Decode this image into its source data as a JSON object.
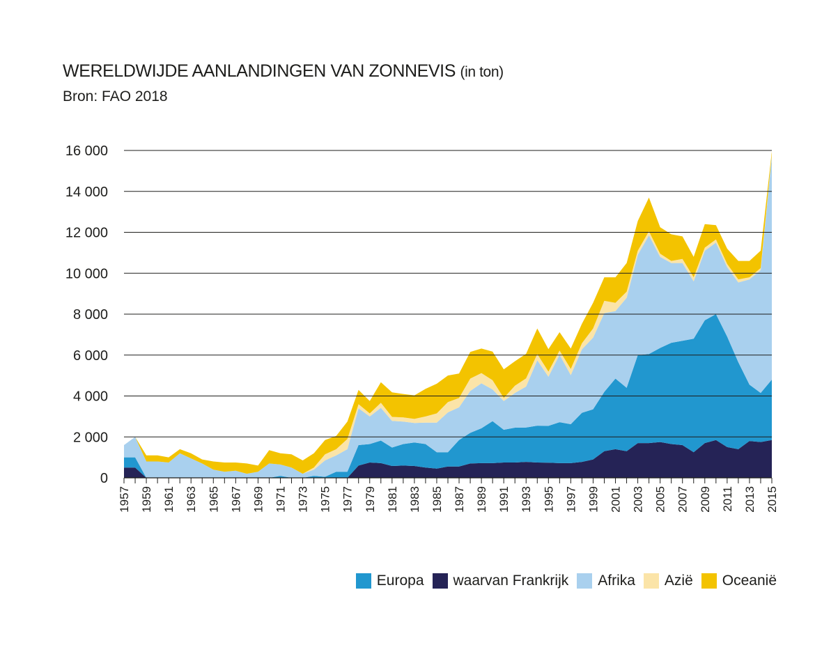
{
  "header": {
    "title_main": "WERELDWIJDE AANLANDINGEN VAN ZONNEVIS",
    "title_unit": "(in ton)",
    "source": "Bron: FAO 2018"
  },
  "colors": {
    "europa": "#2197cf",
    "frankrijk": "#252356",
    "afrika": "#a9d0ee",
    "azie": "#fbe4a8",
    "oceanie": "#f3c300",
    "gridline": "#1d1d1b"
  },
  "chart_data": {
    "type": "area",
    "stacked": true,
    "title": "WERELDWIJDE AANLANDINGEN VAN ZONNEVIS (in ton)",
    "ylim": [
      0,
      16000
    ],
    "yticks": [
      0,
      2000,
      4000,
      6000,
      8000,
      10000,
      12000,
      14000,
      16000
    ],
    "ytick_labels": [
      "0",
      "2 000",
      "4 000",
      "6 000",
      "8 000",
      "10 000",
      "12 000",
      "14 000",
      "16 000"
    ],
    "xtick_labels": [
      "1957",
      "1959",
      "1961",
      "1963",
      "1965",
      "1967",
      "1969",
      "1971",
      "1973",
      "1975",
      "1977",
      "1979",
      "1981",
      "1983",
      "1985",
      "1987",
      "1989",
      "1991",
      "1993",
      "1995",
      "1997",
      "1999",
      "2001",
      "2003",
      "2005",
      "2007",
      "2009",
      "2011",
      "2013",
      "2015"
    ],
    "grid": "horizontal",
    "legend_position": "bottom-right",
    "x": [
      1957,
      1958,
      1959,
      1960,
      1961,
      1962,
      1963,
      1964,
      1965,
      1966,
      1967,
      1968,
      1969,
      1970,
      1971,
      1972,
      1973,
      1974,
      1975,
      1976,
      1977,
      1978,
      1979,
      1980,
      1981,
      1982,
      1983,
      1984,
      1985,
      1986,
      1987,
      1988,
      1989,
      1990,
      1991,
      1992,
      1993,
      1994,
      1995,
      1996,
      1997,
      1998,
      1999,
      2000,
      2001,
      2002,
      2003,
      2004,
      2005,
      2006,
      2007,
      2008,
      2009,
      2010,
      2011,
      2012,
      2013,
      2014,
      2015
    ],
    "series": [
      {
        "name": "waarvan Frankrijk",
        "color_key": "frankrijk",
        "values": [
          500,
          500,
          0,
          0,
          0,
          0,
          0,
          0,
          0,
          0,
          0,
          0,
          0,
          0,
          0,
          0,
          0,
          0,
          0,
          0,
          0,
          600,
          750,
          720,
          580,
          600,
          580,
          500,
          450,
          550,
          550,
          700,
          720,
          720,
          750,
          750,
          780,
          750,
          740,
          720,
          720,
          780,
          900,
          1300,
          1400,
          1300,
          1700,
          1700,
          1750,
          1650,
          1600,
          1250,
          1700,
          1850,
          1500,
          1400,
          1800,
          1750,
          1850
        ]
      },
      {
        "name": "Europa",
        "color_key": "europa",
        "values": [
          500,
          500,
          0,
          0,
          0,
          0,
          0,
          0,
          0,
          0,
          0,
          0,
          0,
          0,
          100,
          0,
          0,
          100,
          50,
          300,
          300,
          1000,
          900,
          1100,
          900,
          1050,
          1150,
          1150,
          800,
          700,
          1300,
          1500,
          1700,
          2050,
          1600,
          1700,
          1680,
          1800,
          1800,
          2000,
          1900,
          2400,
          2450,
          2900,
          3450,
          3100,
          4300,
          4350,
          4600,
          4950,
          5100,
          5550,
          6000,
          6150,
          5400,
          4250,
          2750,
          2400,
          2950
        ]
      },
      {
        "name": "Afrika",
        "color_key": "afrika",
        "values": [
          600,
          1000,
          800,
          800,
          750,
          1200,
          950,
          700,
          400,
          300,
          350,
          200,
          300,
          700,
          550,
          500,
          200,
          300,
          800,
          800,
          1100,
          1800,
          1350,
          1600,
          1300,
          1100,
          950,
          1050,
          1450,
          1950,
          1600,
          2050,
          2200,
          1550,
          1400,
          1700,
          2000,
          3200,
          2400,
          3300,
          2400,
          3100,
          3500,
          3850,
          3300,
          4400,
          4900,
          5800,
          4450,
          3900,
          3800,
          2800,
          3400,
          3500,
          3400,
          3900,
          5150,
          6000,
          10900
        ]
      },
      {
        "name": "Azië",
        "color_key": "azie",
        "values": [
          0,
          0,
          0,
          0,
          0,
          0,
          0,
          0,
          0,
          0,
          0,
          0,
          0,
          0,
          0,
          0,
          0,
          100,
          300,
          300,
          500,
          200,
          150,
          250,
          200,
          200,
          200,
          300,
          450,
          500,
          450,
          600,
          500,
          450,
          150,
          350,
          400,
          300,
          250,
          200,
          300,
          300,
          450,
          600,
          400,
          300,
          200,
          200,
          150,
          100,
          200,
          200,
          150,
          150,
          150,
          150,
          100,
          100,
          100
        ]
      },
      {
        "name": "Oceanië",
        "color_key": "oceanie",
        "values": [
          0,
          0,
          300,
          300,
          250,
          200,
          250,
          200,
          400,
          450,
          400,
          500,
          300,
          650,
          550,
          650,
          650,
          700,
          700,
          650,
          850,
          700,
          600,
          1000,
          1200,
          1150,
          1150,
          1350,
          1450,
          1300,
          1200,
          1300,
          1200,
          1400,
          1400,
          1200,
          1200,
          1250,
          1100,
          900,
          1000,
          950,
          1250,
          1150,
          1250,
          1400,
          1450,
          1650,
          1300,
          1300,
          1100,
          1000,
          1150,
          700,
          750,
          900,
          800,
          850,
          150
        ]
      }
    ]
  },
  "legend": {
    "items": [
      {
        "label": "Europa",
        "color_key": "europa"
      },
      {
        "label": "waarvan Frankrijk",
        "color_key": "frankrijk"
      },
      {
        "label": "Afrika",
        "color_key": "afrika"
      },
      {
        "label": "Azië",
        "color_key": "azie"
      },
      {
        "label": "Oceanië",
        "color_key": "oceanie"
      }
    ]
  }
}
